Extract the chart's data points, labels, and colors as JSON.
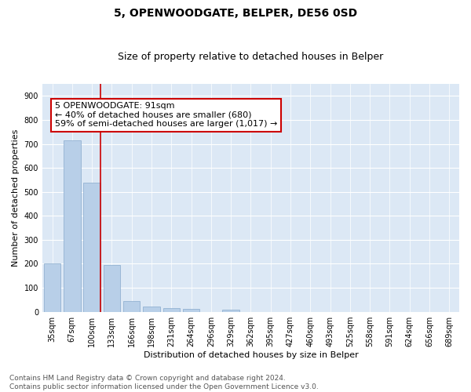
{
  "title": "5, OPENWOODGATE, BELPER, DE56 0SD",
  "subtitle": "Size of property relative to detached houses in Belper",
  "xlabel": "Distribution of detached houses by size in Belper",
  "ylabel": "Number of detached properties",
  "categories": [
    "35sqm",
    "67sqm",
    "100sqm",
    "133sqm",
    "166sqm",
    "198sqm",
    "231sqm",
    "264sqm",
    "296sqm",
    "329sqm",
    "362sqm",
    "395sqm",
    "427sqm",
    "460sqm",
    "493sqm",
    "525sqm",
    "558sqm",
    "591sqm",
    "624sqm",
    "656sqm",
    "689sqm"
  ],
  "values": [
    203,
    714,
    537,
    195,
    43,
    20,
    15,
    12,
    0,
    9,
    0,
    0,
    0,
    0,
    0,
    0,
    0,
    0,
    0,
    0,
    0
  ],
  "bar_color": "#b8cfe8",
  "bar_edge_color": "#88aacc",
  "vline_color": "#cc0000",
  "annotation_text": "5 OPENWOODGATE: 91sqm\n← 40% of detached houses are smaller (680)\n59% of semi-detached houses are larger (1,017) →",
  "annotation_box_facecolor": "#ffffff",
  "annotation_box_edgecolor": "#cc0000",
  "ylim": [
    0,
    950
  ],
  "yticks": [
    0,
    100,
    200,
    300,
    400,
    500,
    600,
    700,
    800,
    900
  ],
  "plot_bg_color": "#dce8f5",
  "fig_bg_color": "#ffffff",
  "grid_color": "#ffffff",
  "footnote": "Contains HM Land Registry data © Crown copyright and database right 2024.\nContains public sector information licensed under the Open Government Licence v3.0.",
  "title_fontsize": 10,
  "subtitle_fontsize": 9,
  "axis_label_fontsize": 8,
  "tick_fontsize": 7,
  "annotation_fontsize": 8,
  "footnote_fontsize": 6.5
}
